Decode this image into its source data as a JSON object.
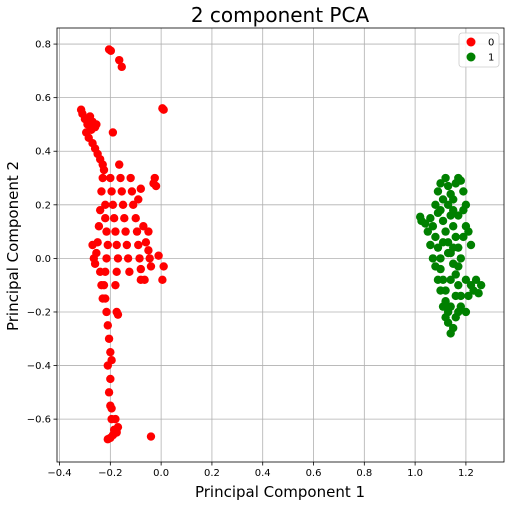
{
  "chart_data": {
    "type": "scatter",
    "title": "2 component PCA",
    "xlabel": "Principal Component 1",
    "ylabel": "Principal Component 2",
    "xlim": [
      -0.41,
      1.35
    ],
    "ylim": [
      -0.76,
      0.86
    ],
    "xticks": [
      -0.4,
      -0.2,
      0.0,
      0.2,
      0.4,
      0.6,
      0.8,
      1.0,
      1.2
    ],
    "xtick_labels": [
      "−0.4",
      "−0.2",
      "0.0",
      "0.2",
      "0.4",
      "0.6",
      "0.8",
      "1.0",
      "1.2"
    ],
    "yticks": [
      -0.6,
      -0.4,
      -0.2,
      0.0,
      0.2,
      0.4,
      0.6,
      0.8
    ],
    "ytick_labels": [
      "−0.6",
      "−0.4",
      "−0.2",
      "0.0",
      "0.2",
      "0.4",
      "0.6",
      "0.8"
    ],
    "grid": true,
    "legend_position": "top-right",
    "series": [
      {
        "name": "0",
        "color": "#ff0000",
        "points": [
          [
            -0.205,
            0.78
          ],
          [
            -0.198,
            0.775
          ],
          [
            -0.165,
            0.74
          ],
          [
            -0.155,
            0.715
          ],
          [
            0.005,
            0.56
          ],
          [
            0.01,
            0.555
          ],
          [
            -0.19,
            0.47
          ],
          [
            -0.315,
            0.555
          ],
          [
            -0.31,
            0.54
          ],
          [
            -0.3,
            0.52
          ],
          [
            -0.29,
            0.5
          ],
          [
            -0.28,
            0.53
          ],
          [
            -0.27,
            0.51
          ],
          [
            -0.26,
            0.49
          ],
          [
            -0.295,
            0.47
          ],
          [
            -0.285,
            0.45
          ],
          [
            -0.27,
            0.43
          ],
          [
            -0.26,
            0.41
          ],
          [
            -0.25,
            0.39
          ],
          [
            -0.24,
            0.37
          ],
          [
            -0.23,
            0.35
          ],
          [
            -0.255,
            0.5
          ],
          [
            -0.275,
            0.48
          ],
          [
            -0.22,
            0.2
          ],
          [
            -0.22,
            0.15
          ],
          [
            -0.215,
            0.1
          ],
          [
            -0.21,
            0.05
          ],
          [
            -0.215,
            0.0
          ],
          [
            -0.22,
            -0.05
          ],
          [
            -0.225,
            -0.1
          ],
          [
            -0.22,
            -0.15
          ],
          [
            -0.215,
            -0.2
          ],
          [
            -0.21,
            -0.25
          ],
          [
            -0.205,
            -0.3
          ],
          [
            -0.2,
            -0.35
          ],
          [
            -0.195,
            -0.38
          ],
          [
            -0.2,
            0.3
          ],
          [
            -0.195,
            0.25
          ],
          [
            -0.19,
            0.2
          ],
          [
            -0.185,
            0.15
          ],
          [
            -0.18,
            0.1
          ],
          [
            -0.175,
            0.05
          ],
          [
            -0.17,
            0.0
          ],
          [
            -0.175,
            -0.05
          ],
          [
            -0.18,
            -0.1
          ],
          [
            -0.165,
            0.35
          ],
          [
            -0.16,
            0.3
          ],
          [
            -0.155,
            0.25
          ],
          [
            -0.15,
            0.2
          ],
          [
            -0.145,
            0.15
          ],
          [
            -0.14,
            0.1
          ],
          [
            -0.135,
            0.05
          ],
          [
            -0.13,
            0.0
          ],
          [
            -0.125,
            -0.05
          ],
          [
            -0.12,
            0.3
          ],
          [
            -0.115,
            0.25
          ],
          [
            -0.11,
            0.2
          ],
          [
            -0.1,
            0.15
          ],
          [
            -0.095,
            0.1
          ],
          [
            -0.09,
            0.05
          ],
          [
            -0.085,
            0.0
          ],
          [
            -0.08,
            -0.04
          ],
          [
            -0.07,
            0.12
          ],
          [
            -0.06,
            0.06
          ],
          [
            -0.05,
            0.03
          ],
          [
            -0.045,
            0.0
          ],
          [
            -0.04,
            -0.03
          ],
          [
            -0.25,
            0.06
          ],
          [
            -0.255,
            0.02
          ],
          [
            -0.26,
            -0.02
          ],
          [
            -0.24,
            -0.05
          ],
          [
            -0.235,
            -0.1
          ],
          [
            -0.23,
            -0.15
          ],
          [
            -0.27,
            0.05
          ],
          [
            -0.265,
            0.0
          ],
          [
            -0.245,
            0.12
          ],
          [
            -0.24,
            0.18
          ],
          [
            -0.235,
            0.25
          ],
          [
            -0.23,
            0.3
          ],
          [
            -0.225,
            0.33
          ],
          [
            -0.03,
            0.28
          ],
          [
            -0.025,
            0.3
          ],
          [
            -0.02,
            0.27
          ],
          [
            -0.05,
            0.1
          ],
          [
            -0.09,
            0.22
          ],
          [
            -0.08,
            0.26
          ],
          [
            0.005,
            -0.08
          ],
          [
            0.01,
            -0.03
          ],
          [
            -0.01,
            0.01
          ],
          [
            -0.08,
            -0.08
          ],
          [
            -0.065,
            -0.08
          ],
          [
            -0.17,
            -0.21
          ],
          [
            -0.175,
            -0.2
          ],
          [
            -0.21,
            -0.4
          ],
          [
            -0.2,
            -0.45
          ],
          [
            -0.205,
            -0.5
          ],
          [
            -0.2,
            -0.55
          ],
          [
            -0.195,
            -0.6
          ],
          [
            -0.195,
            -0.56
          ],
          [
            -0.18,
            -0.6
          ],
          [
            -0.185,
            -0.64
          ],
          [
            -0.19,
            -0.66
          ],
          [
            -0.2,
            -0.67
          ],
          [
            -0.21,
            -0.675
          ],
          [
            -0.175,
            -0.65
          ],
          [
            -0.17,
            -0.63
          ],
          [
            -0.04,
            -0.665
          ]
        ]
      },
      {
        "name": "1",
        "color": "#008000",
        "points": [
          [
            1.02,
            0.155
          ],
          [
            1.025,
            0.14
          ],
          [
            1.04,
            0.13
          ],
          [
            1.08,
            0.2
          ],
          [
            1.09,
            0.25
          ],
          [
            1.1,
            0.28
          ],
          [
            1.12,
            0.3
          ],
          [
            1.13,
            0.27
          ],
          [
            1.14,
            0.24
          ],
          [
            1.15,
            0.22
          ],
          [
            1.16,
            0.28
          ],
          [
            1.17,
            0.3
          ],
          [
            1.18,
            0.29
          ],
          [
            1.19,
            0.25
          ],
          [
            1.07,
            0.12
          ],
          [
            1.08,
            0.08
          ],
          [
            1.09,
            0.04
          ],
          [
            1.1,
            0.0
          ],
          [
            1.1,
            -0.04
          ],
          [
            1.11,
            -0.08
          ],
          [
            1.12,
            -0.12
          ],
          [
            1.12,
            -0.16
          ],
          [
            1.13,
            -0.2
          ],
          [
            1.13,
            -0.24
          ],
          [
            1.14,
            -0.28
          ],
          [
            1.1,
            0.18
          ],
          [
            1.11,
            0.14
          ],
          [
            1.12,
            0.1
          ],
          [
            1.13,
            0.06
          ],
          [
            1.14,
            0.02
          ],
          [
            1.15,
            -0.02
          ],
          [
            1.16,
            -0.06
          ],
          [
            1.17,
            -0.1
          ],
          [
            1.18,
            -0.14
          ],
          [
            1.18,
            -0.18
          ],
          [
            1.14,
            0.16
          ],
          [
            1.15,
            0.12
          ],
          [
            1.16,
            0.08
          ],
          [
            1.17,
            0.04
          ],
          [
            1.18,
            0.0
          ],
          [
            1.19,
            0.08
          ],
          [
            1.2,
            0.12
          ],
          [
            1.21,
            0.1
          ],
          [
            1.22,
            0.05
          ],
          [
            1.06,
            0.05
          ],
          [
            1.07,
            0.0
          ],
          [
            1.08,
            -0.03
          ],
          [
            1.09,
            -0.08
          ],
          [
            1.1,
            -0.12
          ],
          [
            1.11,
            -0.18
          ],
          [
            1.12,
            -0.22
          ],
          [
            1.2,
            -0.08
          ],
          [
            1.22,
            -0.1
          ],
          [
            1.24,
            -0.08
          ],
          [
            1.26,
            -0.1
          ],
          [
            1.25,
            -0.13
          ],
          [
            1.23,
            -0.12
          ],
          [
            1.21,
            -0.14
          ],
          [
            1.2,
            -0.2
          ],
          [
            1.15,
            -0.26
          ],
          [
            1.16,
            -0.22
          ],
          [
            1.17,
            -0.2
          ],
          [
            1.14,
            -0.18
          ],
          [
            1.11,
            0.22
          ],
          [
            1.13,
            0.2
          ],
          [
            1.15,
            0.18
          ],
          [
            1.17,
            0.16
          ],
          [
            1.19,
            0.18
          ],
          [
            1.2,
            0.2
          ],
          [
            1.05,
            0.1
          ],
          [
            1.06,
            0.15
          ],
          [
            1.09,
            0.17
          ],
          [
            1.11,
            0.06
          ],
          [
            1.13,
            0.02
          ],
          [
            1.15,
            0.04
          ],
          [
            1.17,
            -0.03
          ],
          [
            1.14,
            -0.08
          ],
          [
            1.16,
            -0.14
          ]
        ]
      }
    ]
  }
}
